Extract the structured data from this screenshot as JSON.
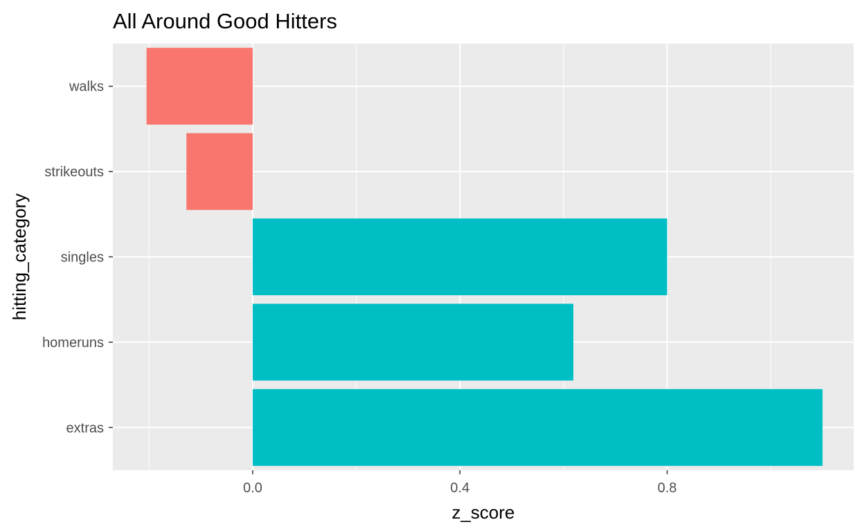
{
  "chart_data": {
    "type": "bar",
    "orientation": "horizontal",
    "title": "All Around Good Hitters",
    "xlabel": "z_score",
    "ylabel": "hitting_category",
    "categories": [
      "walks",
      "strikeouts",
      "singles",
      "homeruns",
      "extras"
    ],
    "values": [
      -0.205,
      -0.128,
      0.8,
      0.619,
      1.1
    ],
    "xlim": [
      -0.27,
      1.16
    ],
    "xticks": [
      0.0,
      0.4,
      0.8
    ],
    "xtick_labels": [
      "0.0",
      "0.4",
      "0.8"
    ],
    "grid": true,
    "legend": "none",
    "colors": {
      "negative": "#F8766D",
      "positive": "#00BFC4",
      "panel_background": "#EBEBEB",
      "grid_line": "#FFFFFF",
      "tick_text": "#4D4D4D",
      "tick_mark": "#333333"
    }
  }
}
